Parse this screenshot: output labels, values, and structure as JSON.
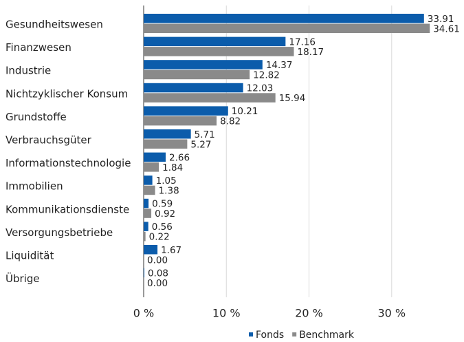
{
  "chart_data": {
    "type": "hbar",
    "categories": [
      "Gesundheitswesen",
      "Finanzwesen",
      "Industrie",
      "Nichtzyklischer Konsum",
      "Grundstoffe",
      "Verbrauchsgüter",
      "Informationstechnologie",
      "Immobilien",
      "Kommunikationsdienste",
      "Versorgungsbetriebe",
      "Liquidität",
      "Übrige"
    ],
    "series": [
      {
        "name": "Fonds",
        "color": "#0b5cab",
        "values": [
          33.91,
          17.16,
          14.37,
          12.03,
          10.21,
          5.71,
          2.66,
          1.05,
          0.59,
          0.56,
          1.67,
          0.08
        ],
        "value_labels": [
          "33.91",
          "17.16",
          "14.37",
          "12.03",
          "10.21",
          "5.71",
          "2.66",
          "1.05",
          "0.59",
          "0.56",
          "1.67",
          "0.08"
        ]
      },
      {
        "name": "Benchmark",
        "color": "#8a8a8a",
        "values": [
          34.61,
          18.17,
          12.82,
          15.94,
          8.82,
          5.27,
          1.84,
          1.38,
          0.92,
          0.22,
          0,
          0
        ],
        "value_labels": [
          "34.61",
          "18.17",
          "12.82",
          "15.94",
          "8.82",
          "5.27",
          "1.84",
          "1.38",
          "0.92",
          "0.22",
          "0.00",
          "0.00"
        ]
      }
    ],
    "xlim": [
      0,
      38.5
    ],
    "xticks": [
      {
        "value": 0,
        "label": "0 %"
      },
      {
        "value": 10,
        "label": "10 %"
      },
      {
        "value": 20,
        "label": "20 %"
      },
      {
        "value": 30,
        "label": "30 %"
      }
    ],
    "grid": true,
    "legend": "bottom"
  }
}
